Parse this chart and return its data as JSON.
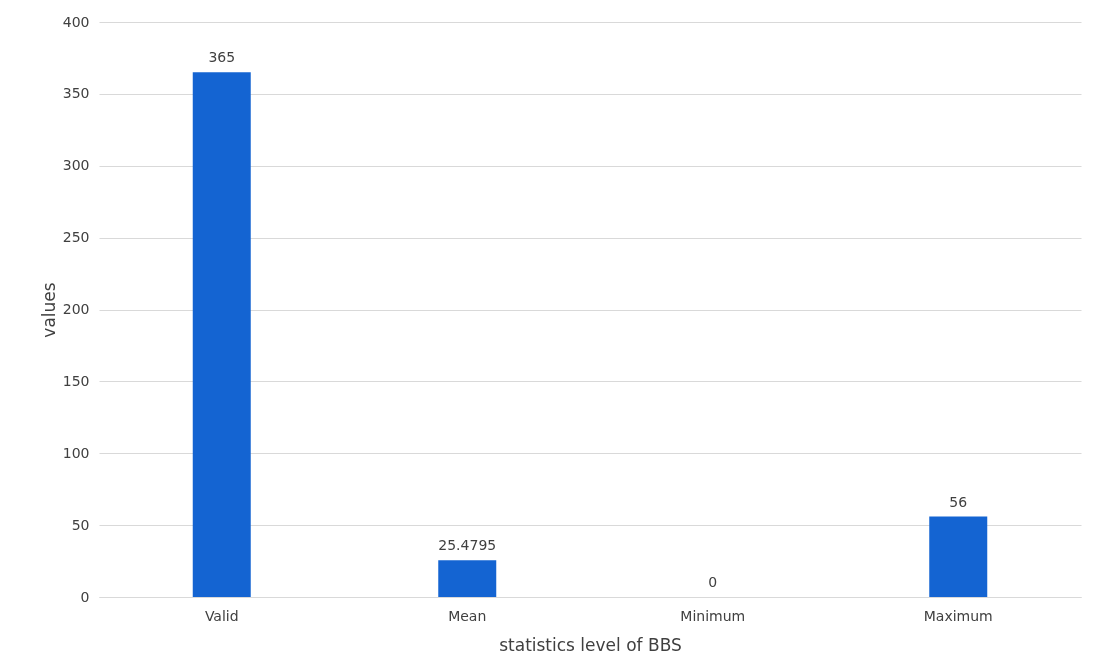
{
  "chart_data": {
    "type": "bar",
    "xlabel": "statistics level of BBS",
    "ylabel": "values",
    "categories": [
      "Valid",
      "Mean",
      "Minimum",
      "Maximum"
    ],
    "values": [
      365,
      25.4795,
      0,
      56
    ],
    "color": "#1464d2",
    "ylim": [
      0,
      400
    ],
    "yticks": [
      0,
      50,
      100,
      150,
      200,
      250,
      300,
      350,
      400
    ],
    "grid": "y",
    "data_labels": true
  }
}
